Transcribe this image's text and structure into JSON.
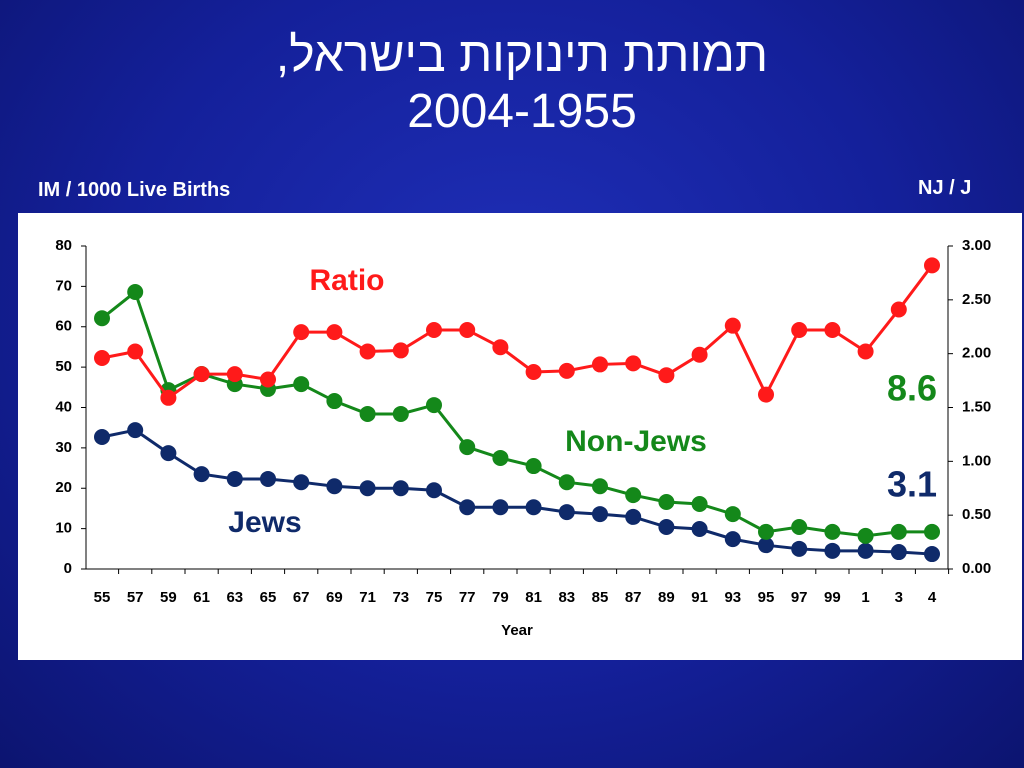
{
  "chart_data": {
    "type": "line",
    "title": "תמותת תינוקות בישראל, 2004-1955",
    "y_label": "IM / 1000 Live Births",
    "y2_label": "NJ / J",
    "x_label": "Year",
    "categories": [
      "55",
      "57",
      "59",
      "61",
      "63",
      "65",
      "67",
      "69",
      "71",
      "73",
      "75",
      "77",
      "79",
      "81",
      "83",
      "85",
      "87",
      "89",
      "91",
      "93",
      "95",
      "97",
      "99",
      "1",
      "3",
      "4"
    ],
    "ylim": [
      0,
      80
    ],
    "yticks": [
      0,
      10,
      20,
      30,
      40,
      50,
      60,
      70,
      80
    ],
    "y2lim": [
      0,
      3
    ],
    "y2ticks": [
      {
        "value": 0,
        "label": "0.00"
      },
      {
        "value": 0.5,
        "label": "0.50"
      },
      {
        "value": 1,
        "label": "1.00"
      },
      {
        "value": 1.5,
        "label": "1.50"
      },
      {
        "value": 2,
        "label": "2.00"
      },
      {
        "value": 2.5,
        "label": "2.50"
      },
      {
        "value": 3,
        "label": "3.00"
      }
    ],
    "series": [
      {
        "name": "Jews",
        "color": "#0f2a6a",
        "values": [
          32.7,
          34.4,
          28.7,
          23.5,
          22.3,
          22.3,
          21.5,
          20.5,
          20.0,
          20.0,
          19.5,
          15.3,
          15.3,
          15.3,
          14.1,
          13.6,
          12.9,
          10.4,
          9.9,
          7.4,
          5.9,
          5.0,
          4.5,
          4.5,
          4.2,
          3.7
        ]
      },
      {
        "name": "Non-Jews",
        "color": "#14881a",
        "values": [
          62.1,
          68.6,
          44.3,
          48.3,
          45.8,
          44.6,
          45.8,
          41.6,
          38.4,
          38.4,
          40.6,
          30.2,
          27.5,
          25.5,
          21.5,
          20.5,
          18.3,
          16.6,
          16.1,
          13.6,
          9.2,
          10.4,
          9.2,
          8.2,
          9.2,
          9.2
        ]
      },
      {
        "name": "Ratio",
        "color": "#ff1a1a",
        "axis": "y2",
        "values": [
          1.96,
          2.02,
          1.59,
          1.81,
          1.81,
          1.76,
          2.2,
          2.2,
          2.02,
          2.03,
          2.22,
          2.22,
          2.06,
          1.83,
          1.84,
          1.9,
          1.91,
          1.8,
          1.99,
          2.26,
          1.62,
          2.22,
          2.22,
          2.02,
          2.41,
          2.82
        ]
      }
    ],
    "annotations": [
      {
        "text": "8.6",
        "color": "#14881a"
      },
      {
        "text": "3.1",
        "color": "#0f2a6a"
      }
    ]
  }
}
